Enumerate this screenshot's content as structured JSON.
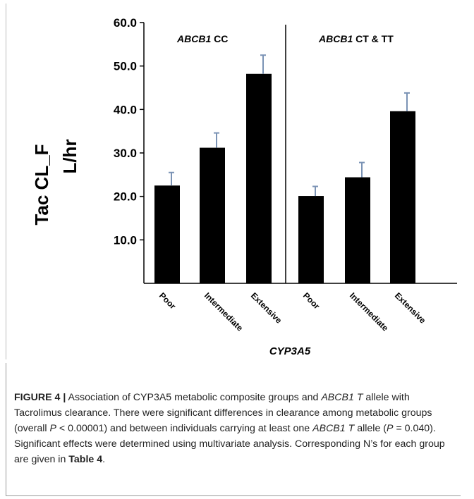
{
  "chart_data": {
    "type": "bar",
    "ylabel_line1": "Tac CL_F",
    "ylabel_line2": "L/hr",
    "xlabel": "CYP3A5",
    "ylim": [
      0,
      60
    ],
    "yticks": [
      "10.0",
      "20.0",
      "30.0",
      "40.0",
      "50.0",
      "60.0"
    ],
    "ytick_values": [
      10,
      20,
      30,
      40,
      50,
      60
    ],
    "panels": [
      {
        "label_gene": "ABCB1",
        "label_genotype": "CC",
        "categories": [
          "Poor",
          "Intermediate",
          "Extensive"
        ],
        "values": [
          22.5,
          31.2,
          48.2
        ],
        "error": [
          3.0,
          3.4,
          4.3
        ]
      },
      {
        "label_gene": "ABCB1",
        "label_genotype": "CT & TT",
        "categories": [
          "Poor",
          "Intermediate",
          "Extensive"
        ],
        "values": [
          20.1,
          24.4,
          39.6
        ],
        "error": [
          2.2,
          3.4,
          4.2
        ]
      }
    ],
    "bar_color": "#000000",
    "error_color": "#7b93b5",
    "grid": false
  },
  "caption": {
    "figure_label": "FIGURE 4 |",
    "seg1": " Association of CYP3A5 metabolic composite groups and ",
    "gene1": "ABCB1",
    "seg2": " ",
    "allele1": "T",
    "seg3": " allele with Tacrolimus clearance. There were significant differences in clearance among metabolic groups (overall ",
    "p1": "P",
    "seg4": " < 0.00001) and between individuals carrying at least one ",
    "gene2": "ABCB1 T",
    "seg5": " allele (",
    "p2": "P",
    "seg6": " = 0.040). Significant effects were determined using multivariate analysis. Corresponding N’s for each group are given in ",
    "table_ref": "Table 4",
    "seg7": "."
  }
}
